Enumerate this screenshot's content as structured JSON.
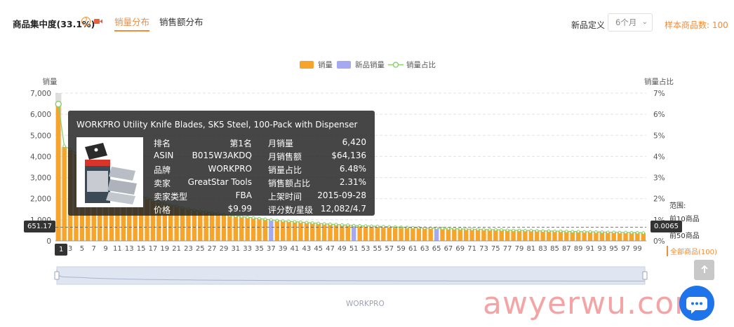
{
  "header": {
    "title": "商品集中度(33.1%)",
    "tabs": [
      {
        "label": "销量分布",
        "active": true
      },
      {
        "label": "销售额分布",
        "active": false
      }
    ],
    "definition_label": "新品定义",
    "period_select": "6个月",
    "sample_count": "样本商品数: 100"
  },
  "legend": [
    {
      "name": "销量",
      "color": "#f7a42a"
    },
    {
      "name": "新品销量",
      "color": "#a4a9f2"
    },
    {
      "name": "销量占比",
      "color": "#8dd070"
    }
  ],
  "chart_data": {
    "type": "bar",
    "ylabel": "销量",
    "y2label": "销量占比",
    "ylim": [
      0,
      7000
    ],
    "y2lim": [
      0,
      7
    ],
    "y_ticks": [
      "0",
      "1,000",
      "2,000",
      "3,000",
      "4,000",
      "5,000",
      "6,000",
      "7,000"
    ],
    "y2_ticks": [
      "0%",
      "1%",
      "2%",
      "3%",
      "4%",
      "5%",
      "6%",
      "7%"
    ],
    "x_tick_labels": [
      "1",
      "3",
      "5",
      "7",
      "9",
      "11",
      "13",
      "15",
      "17",
      "19",
      "21",
      "23",
      "25",
      "27",
      "29",
      "31",
      "33",
      "35",
      "37",
      "39",
      "41",
      "43",
      "45",
      "47",
      "49",
      "51",
      "53",
      "55",
      "57",
      "59",
      "61",
      "63",
      "65",
      "67",
      "69",
      "71",
      "73",
      "75",
      "77",
      "79",
      "81",
      "83",
      "85",
      "87",
      "89",
      "91",
      "93",
      "95",
      "97",
      "99"
    ],
    "new_product_ranks": [
      37,
      51,
      65
    ],
    "sales_approx": [
      6420,
      4450,
      4300,
      4100,
      3900,
      3600,
      3300,
      3100,
      2900,
      2750,
      2600,
      2450,
      2300,
      2200,
      2100,
      2000,
      1900,
      1820,
      1750,
      1680,
      1620,
      1560,
      1500,
      1450,
      1400,
      1360,
      1320,
      1280,
      1240,
      1200,
      1170,
      1140,
      1110,
      1080,
      1050,
      1020,
      990,
      960,
      940,
      920,
      900,
      880,
      860,
      840,
      820,
      800,
      785,
      770,
      755,
      740,
      725,
      710,
      700,
      690,
      680,
      670,
      660,
      650,
      640,
      632,
      624,
      616,
      608,
      600,
      592,
      584,
      577,
      570,
      563,
      556,
      549,
      542,
      535,
      528,
      521,
      514,
      507,
      500,
      494,
      488,
      482,
      476,
      470,
      464,
      458,
      452,
      446,
      440,
      435,
      430,
      425,
      420,
      415,
      410,
      405,
      400,
      395,
      390,
      385,
      380
    ],
    "share_approx_pct": [
      6.48,
      4.49,
      4.34,
      4.14,
      3.94,
      3.63,
      3.33,
      3.13,
      2.93,
      2.78,
      2.62,
      2.47,
      2.32,
      2.22,
      2.12,
      2.02,
      1.92,
      1.84,
      1.77,
      1.7,
      1.64,
      1.57,
      1.51,
      1.46,
      1.41,
      1.37,
      1.33,
      1.29,
      1.25,
      1.21,
      1.18,
      1.15,
      1.12,
      1.09,
      1.06,
      1.03,
      1.0,
      0.97,
      0.95,
      0.93,
      0.91,
      0.89,
      0.87,
      0.85,
      0.83,
      0.81,
      0.79,
      0.78,
      0.76,
      0.75,
      0.73,
      0.72,
      0.71,
      0.7,
      0.69,
      0.68,
      0.67,
      0.66,
      0.65,
      0.64,
      0.63,
      0.62,
      0.61,
      0.61,
      0.6,
      0.59,
      0.58,
      0.58,
      0.57,
      0.56,
      0.55,
      0.55,
      0.54,
      0.53,
      0.53,
      0.52,
      0.51,
      0.5,
      0.5,
      0.49,
      0.49,
      0.48,
      0.47,
      0.47,
      0.46,
      0.46,
      0.45,
      0.44,
      0.44,
      0.43,
      0.43,
      0.42,
      0.42,
      0.41,
      0.41,
      0.4,
      0.4,
      0.39,
      0.39,
      0.38
    ],
    "crosshair_left": "651.17",
    "crosshair_right": "0.0065",
    "crosshair_x_label": "1"
  },
  "tooltip": {
    "title": "WORKPRO Utility Knife Blades, SK5 Steel, 100-Pack with Dispenser",
    "rows": [
      {
        "k1": "排名",
        "v1": "第1名",
        "k2": "月销量",
        "v2": "6,420"
      },
      {
        "k1": "ASIN",
        "v1": "B015W3AKDQ",
        "k2": "月销售额",
        "v2": "$64,136"
      },
      {
        "k1": "品牌",
        "v1": "WORKPRO",
        "k2": "销量占比",
        "v2": "6.48%"
      },
      {
        "k1": "卖家",
        "v1": "GreatStar Tools",
        "k2": "销售额占比",
        "v2": "2.31%"
      },
      {
        "k1": "卖家类型",
        "v1": "FBA",
        "k2": "上架时间",
        "v2": "2015-09-28"
      },
      {
        "k1": "价格",
        "v1": "$9.99",
        "k2": "评分数/星级",
        "v2": "12,082/4.7"
      }
    ]
  },
  "range": {
    "title": "范围:",
    "options": [
      {
        "label": "前10商品",
        "active": false
      },
      {
        "label": "前50商品",
        "active": false
      },
      {
        "label": "全部商品(100)",
        "active": true
      }
    ]
  },
  "brand_label": "WORKPRO",
  "watermark": "awyerwu.com"
}
